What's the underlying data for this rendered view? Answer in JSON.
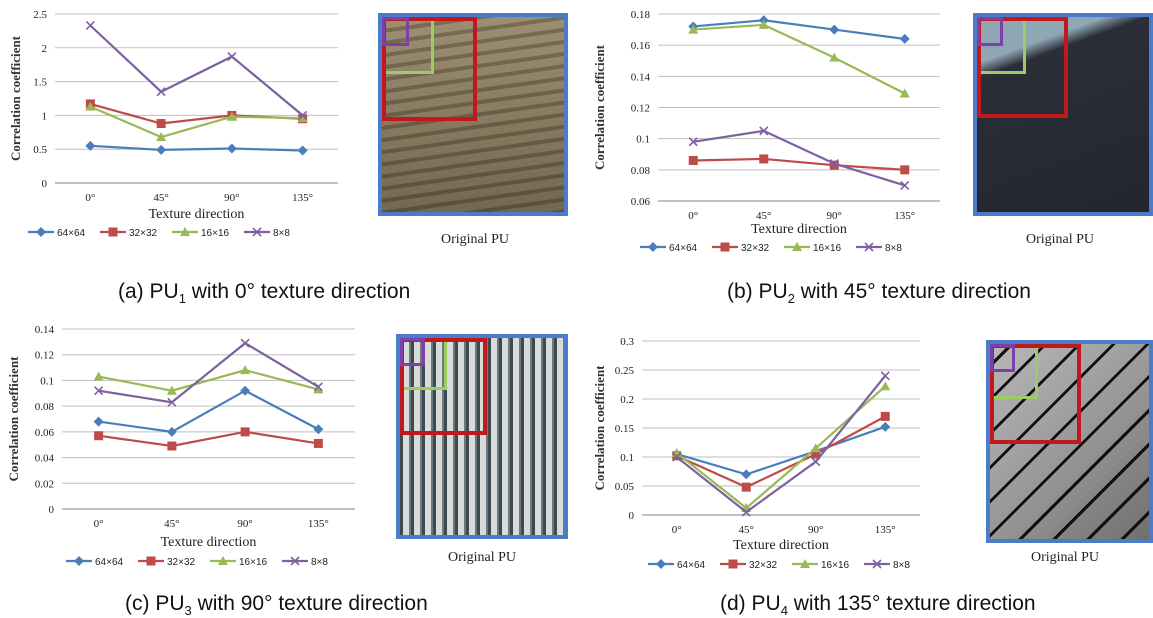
{
  "captions": {
    "a": {
      "prefix": "(a) PU",
      "sub": "1",
      "suffix": " with 0° texture direction"
    },
    "b": {
      "prefix": "(b) PU",
      "sub": "2",
      "suffix": " with 45° texture direction"
    },
    "c": {
      "prefix": "(c) PU",
      "sub": "3",
      "suffix": " with 90° texture direction"
    },
    "d": {
      "prefix": "(d) PU",
      "sub": "4",
      "suffix": " with 135° texture direction"
    }
  },
  "thumb_label": "Original PU",
  "colors": {
    "s64": "#4a7ebb",
    "s32": "#be4b48",
    "s16": "#98b954",
    "s8": "#7d60a0",
    "thumb_border": "#4a7cc9",
    "box_red": "#c0181c",
    "box_green": "#9ccc62",
    "box_purple": "#7f3fa8"
  },
  "chart_data": [
    {
      "type": "line",
      "categories": [
        "0°",
        "45°",
        "90°",
        "135°"
      ],
      "xlabel": "Texture direction",
      "ylabel": "Correlation coefficient",
      "ylim": [
        0,
        2.5
      ],
      "yticks": [
        "0",
        "0.5",
        "1",
        "1.5",
        "2",
        "2.5"
      ],
      "ytick_values": [
        0,
        0.5,
        1,
        1.5,
        2,
        2.5
      ],
      "grid": true,
      "legend": "bottom",
      "series": [
        {
          "name": "64×64",
          "values": [
            0.55,
            0.49,
            0.51,
            0.48
          ]
        },
        {
          "name": "32×32",
          "values": [
            1.17,
            0.88,
            1.0,
            0.95
          ]
        },
        {
          "name": "16×16",
          "values": [
            1.13,
            0.68,
            0.98,
            0.96
          ]
        },
        {
          "name": "8×8",
          "values": [
            2.33,
            1.35,
            1.87,
            1.0
          ]
        }
      ]
    },
    {
      "type": "line",
      "categories": [
        "0°",
        "45°",
        "90°",
        "135°"
      ],
      "xlabel": "Texture direction",
      "ylabel": "Correlation coefficient",
      "ylim": [
        0.06,
        0.18
      ],
      "yticks": [
        "0.06",
        "0.08",
        "0.1",
        "0.12",
        "0.14",
        "0.16",
        "0.18"
      ],
      "ytick_values": [
        0.06,
        0.08,
        0.1,
        0.12,
        0.14,
        0.16,
        0.18
      ],
      "grid": true,
      "legend": "bottom",
      "series": [
        {
          "name": "64×64",
          "values": [
            0.172,
            0.176,
            0.17,
            0.164
          ]
        },
        {
          "name": "32×32",
          "values": [
            0.086,
            0.087,
            0.083,
            0.08
          ]
        },
        {
          "name": "16×16",
          "values": [
            0.17,
            0.173,
            0.152,
            0.129
          ]
        },
        {
          "name": "8×8",
          "values": [
            0.098,
            0.105,
            0.084,
            0.07
          ]
        }
      ]
    },
    {
      "type": "line",
      "categories": [
        "0°",
        "45°",
        "90°",
        "135°"
      ],
      "xlabel": "Texture direction",
      "ylabel": "Correlation coefficient",
      "ylim": [
        0,
        0.14
      ],
      "yticks": [
        "0",
        "0.02",
        "0.04",
        "0.06",
        "0.08",
        "0.1",
        "0.12",
        "0.14"
      ],
      "ytick_values": [
        0,
        0.02,
        0.04,
        0.06,
        0.08,
        0.1,
        0.12,
        0.14
      ],
      "grid": true,
      "legend": "bottom",
      "series": [
        {
          "name": "64×64",
          "values": [
            0.068,
            0.06,
            0.092,
            0.062
          ]
        },
        {
          "name": "32×32",
          "values": [
            0.057,
            0.049,
            0.06,
            0.051
          ]
        },
        {
          "name": "16×16",
          "values": [
            0.103,
            0.092,
            0.108,
            0.093
          ]
        },
        {
          "name": "8×8",
          "values": [
            0.092,
            0.083,
            0.129,
            0.095
          ]
        }
      ]
    },
    {
      "type": "line",
      "categories": [
        "0°",
        "45°",
        "90°",
        "135°"
      ],
      "xlabel": "Texture direction",
      "ylabel": "Correlation coefficient",
      "ylim": [
        0,
        0.3
      ],
      "yticks": [
        "0",
        "0.05",
        "0.1",
        "0.15",
        "0.2",
        "0.25",
        "0.3"
      ],
      "ytick_values": [
        0,
        0.05,
        0.1,
        0.15,
        0.2,
        0.25,
        0.3
      ],
      "grid": true,
      "legend": "bottom",
      "series": [
        {
          "name": "64×64",
          "values": [
            0.105,
            0.07,
            0.11,
            0.152
          ]
        },
        {
          "name": "32×32",
          "values": [
            0.102,
            0.048,
            0.105,
            0.17
          ]
        },
        {
          "name": "16×16",
          "values": [
            0.107,
            0.012,
            0.115,
            0.222
          ]
        },
        {
          "name": "8×8",
          "values": [
            0.1,
            0.005,
            0.092,
            0.24
          ]
        }
      ]
    }
  ]
}
